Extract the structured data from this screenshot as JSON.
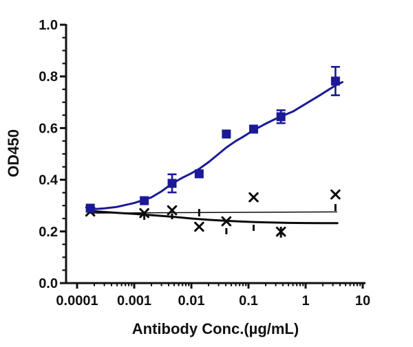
{
  "figure": {
    "background": "#ffffff",
    "axis_color": "#111111",
    "accent_blue": "#1a1a96",
    "series_black": "#0a0a0a"
  },
  "chart_data": {
    "type": "scatter",
    "title": "",
    "xlabel": "Antibody Conc.(µg/mL)",
    "ylabel": "OD450",
    "x_scale": "log",
    "xlim": [
      0.0001,
      10
    ],
    "ylim": [
      0.0,
      1.0
    ],
    "grid": false,
    "legend": "none",
    "x_ticks": [
      0.0001,
      0.001,
      0.01,
      0.1,
      1,
      10
    ],
    "x_tick_labels": [
      "0.0001",
      "0.001",
      "0.01",
      "0.1",
      "1",
      "10"
    ],
    "y_ticks": [
      0.0,
      0.2,
      0.4,
      0.6,
      0.8,
      1.0
    ],
    "y_tick_labels": [
      "0.0",
      "0.2",
      "0.4",
      "0.6",
      "0.8",
      "1.0"
    ],
    "y_minor_step": 0.05,
    "series": [
      {
        "name": "antibody-binding",
        "marker": "square",
        "color": "#1a1a96",
        "x": [
          0.00017,
          0.0015,
          0.0046,
          0.0137,
          0.041,
          0.123,
          0.37,
          3.33
        ],
        "y": [
          0.29,
          0.319,
          0.386,
          0.423,
          0.577,
          0.596,
          0.644,
          0.782
        ],
        "y_err": [
          null,
          null,
          0.035,
          null,
          null,
          null,
          0.025,
          0.055
        ]
      },
      {
        "name": "control-non-binding",
        "marker": "x",
        "color": "#0a0a0a",
        "x": [
          0.00017,
          0.0015,
          0.0046,
          0.0137,
          0.041,
          0.123,
          0.37,
          3.33
        ],
        "y": [
          0.277,
          0.271,
          0.282,
          0.218,
          0.239,
          0.332,
          0.199,
          0.343
        ],
        "err_caps": [
          {
            "x": 0.0015,
            "lo": 0.245,
            "hi": 0.266
          },
          {
            "x": 0.0046,
            "lo": 0.247,
            "hi": 0.269
          },
          {
            "x": 0.0137,
            "lo": 0.258,
            "hi": 0.287
          },
          {
            "x": 0.041,
            "lo": 0.189,
            "hi": 0.213
          },
          {
            "x": 0.123,
            "lo": 0.202,
            "hi": 0.226
          },
          {
            "x": 0.37,
            "lo": 0.176,
            "hi": 0.218
          },
          {
            "x": 3.33,
            "lo": 0.279,
            "hi": 0.306
          }
        ]
      }
    ],
    "curves": [
      {
        "name": "blue-sigmoid-fit",
        "color": "#1a1a96",
        "width": 3,
        "points": [
          [
            0.00017,
            0.285
          ],
          [
            0.0003,
            0.289
          ],
          [
            0.0005,
            0.295
          ],
          [
            0.001,
            0.31
          ],
          [
            0.002,
            0.332
          ],
          [
            0.003,
            0.355
          ],
          [
            0.0046,
            0.385
          ],
          [
            0.007,
            0.408
          ],
          [
            0.01,
            0.425
          ],
          [
            0.0137,
            0.442
          ],
          [
            0.02,
            0.468
          ],
          [
            0.03,
            0.5
          ],
          [
            0.041,
            0.525
          ],
          [
            0.06,
            0.55
          ],
          [
            0.08,
            0.566
          ],
          [
            0.123,
            0.592
          ],
          [
            0.2,
            0.617
          ],
          [
            0.3,
            0.636
          ],
          [
            0.37,
            0.645
          ],
          [
            0.6,
            0.664
          ],
          [
            1.11,
            0.7
          ],
          [
            1.8,
            0.728
          ],
          [
            2.5,
            0.748
          ],
          [
            3.33,
            0.765
          ],
          [
            4.4,
            0.778
          ]
        ]
      },
      {
        "name": "black-decay-fit",
        "color": "#0a0a0a",
        "width": 3,
        "points": [
          [
            0.00017,
            0.279
          ],
          [
            0.0005,
            0.272
          ],
          [
            0.001,
            0.268
          ],
          [
            0.002,
            0.263
          ],
          [
            0.0046,
            0.257
          ],
          [
            0.01,
            0.25
          ],
          [
            0.02,
            0.245
          ],
          [
            0.041,
            0.241
          ],
          [
            0.08,
            0.238
          ],
          [
            0.123,
            0.2365
          ],
          [
            0.25,
            0.2345
          ],
          [
            0.5,
            0.233
          ],
          [
            1.0,
            0.2325
          ],
          [
            2.0,
            0.232
          ],
          [
            3.6,
            0.232
          ]
        ]
      },
      {
        "name": "black-flat-reference-line",
        "color": "#0a0a0a",
        "width": 1.5,
        "points": [
          [
            0.00017,
            0.271
          ],
          [
            3.5,
            0.2755
          ]
        ]
      }
    ]
  }
}
